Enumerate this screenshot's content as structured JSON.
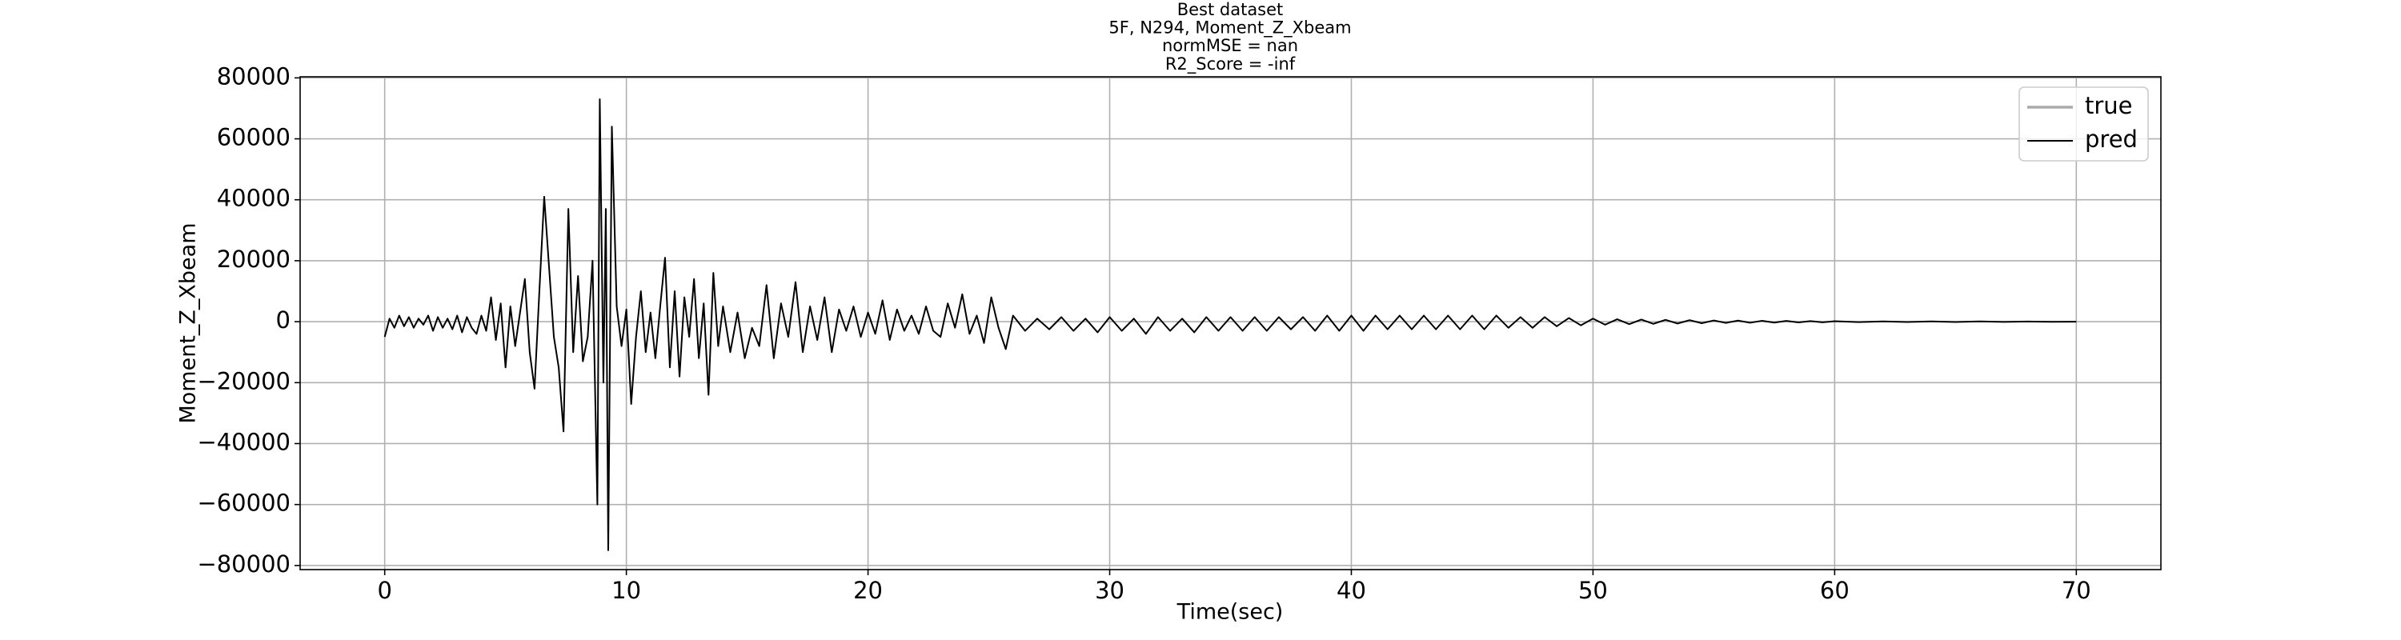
{
  "chart_data": {
    "type": "line",
    "title": [
      "Best dataset",
      "5F, N294, Moment_Z_Xbeam",
      "normMSE = nan",
      "R2_Score = -inf"
    ],
    "xlabel": "Time(sec)",
    "ylabel": "Moment_Z_Xbeam",
    "xlim": [
      -3.5,
      73.5
    ],
    "ylim": [
      -81350,
      80350
    ],
    "xticks": [
      0,
      10,
      20,
      30,
      40,
      50,
      60,
      70
    ],
    "yticks": [
      {
        "value": -80000,
        "label": "−80000"
      },
      {
        "value": -60000,
        "label": "−60000"
      },
      {
        "value": -40000,
        "label": "−40000"
      },
      {
        "value": -20000,
        "label": "−20000"
      },
      0,
      20000,
      40000,
      60000,
      80000
    ],
    "grid": true,
    "legend": "upper right",
    "x": [
      0,
      0.2,
      0.4,
      0.6,
      0.8,
      1.0,
      1.2,
      1.4,
      1.6,
      1.8,
      2.0,
      2.2,
      2.4,
      2.6,
      2.8,
      3.0,
      3.2,
      3.4,
      3.6,
      3.8,
      4.0,
      4.2,
      4.4,
      4.6,
      4.8,
      5.0,
      5.2,
      5.4,
      5.6,
      5.8,
      6.0,
      6.2,
      6.4,
      6.6,
      6.8,
      7.0,
      7.2,
      7.4,
      7.6,
      7.8,
      8.0,
      8.2,
      8.4,
      8.6,
      8.8,
      8.9,
      9.05,
      9.15,
      9.25,
      9.4,
      9.6,
      9.8,
      10.0,
      10.2,
      10.4,
      10.6,
      10.8,
      11.0,
      11.2,
      11.4,
      11.6,
      11.8,
      12.0,
      12.2,
      12.4,
      12.6,
      12.8,
      13.0,
      13.2,
      13.4,
      13.6,
      13.8,
      14.0,
      14.3,
      14.6,
      14.9,
      15.2,
      15.5,
      15.8,
      16.1,
      16.4,
      16.7,
      17.0,
      17.3,
      17.6,
      17.9,
      18.2,
      18.5,
      18.8,
      19.1,
      19.4,
      19.7,
      20.0,
      20.3,
      20.6,
      20.9,
      21.2,
      21.5,
      21.8,
      22.1,
      22.4,
      22.7,
      23.0,
      23.3,
      23.6,
      23.9,
      24.2,
      24.5,
      24.8,
      25.1,
      25.4,
      25.7,
      26.0,
      26.5,
      27,
      27.5,
      28,
      28.5,
      29,
      29.5,
      30,
      30.5,
      31,
      31.5,
      32,
      32.5,
      33,
      33.5,
      34,
      34.5,
      35,
      35.5,
      36,
      36.5,
      37,
      37.5,
      38,
      38.5,
      39,
      39.5,
      40,
      40.5,
      41,
      41.5,
      42,
      42.5,
      43,
      43.5,
      44,
      44.5,
      45,
      45.5,
      46,
      46.5,
      47,
      47.5,
      48,
      48.5,
      49,
      49.5,
      50,
      50.5,
      51,
      51.5,
      52,
      52.5,
      53,
      53.5,
      54,
      54.5,
      55,
      55.5,
      56,
      56.5,
      57,
      57.5,
      58,
      58.5,
      59,
      59.5,
      60,
      61,
      62,
      63,
      64,
      65,
      66,
      67,
      68,
      69,
      70
    ],
    "series": [
      {
        "name": "true",
        "color": "#aaaaaa",
        "width": 3.5,
        "values": [
          null,
          null,
          null,
          null,
          null,
          null,
          null,
          null,
          null,
          null,
          null,
          null,
          null,
          null,
          null,
          null,
          null,
          null,
          null,
          null,
          null,
          null,
          null,
          null,
          null,
          null,
          null,
          null,
          null,
          null,
          null,
          null,
          null,
          null,
          null,
          null,
          null,
          null,
          null,
          null,
          null,
          null,
          null,
          null,
          null,
          null,
          null,
          null,
          null,
          null,
          null,
          null,
          null,
          null,
          null,
          null,
          null,
          null,
          null,
          null,
          null,
          null,
          null,
          null,
          null,
          null,
          null,
          null,
          null,
          null,
          null,
          null,
          null,
          null,
          null,
          null,
          null,
          null,
          null,
          null,
          null,
          null,
          null,
          null,
          null,
          null,
          null,
          null,
          null,
          null,
          null,
          null,
          null,
          null,
          null,
          null,
          null,
          null,
          null,
          null,
          null,
          null,
          null,
          null,
          null,
          null,
          null,
          null,
          null,
          null,
          null,
          null,
          null,
          null,
          null,
          null,
          null,
          null,
          null,
          null,
          null,
          null,
          null,
          null,
          null,
          null,
          null,
          null,
          null,
          null,
          null,
          null,
          null,
          null,
          null,
          null,
          null,
          null,
          null,
          null,
          null,
          null,
          null,
          null,
          null,
          null,
          null,
          null,
          null,
          null,
          null,
          null,
          null,
          null,
          null,
          null,
          null,
          null,
          null,
          null,
          null,
          null,
          null,
          null,
          null,
          null,
          null,
          null,
          null,
          null,
          null,
          null,
          null,
          null,
          null,
          null,
          null,
          null,
          null,
          null,
          null,
          null,
          null,
          null,
          null,
          null,
          null,
          null,
          null,
          null,
          null
        ]
      },
      {
        "name": "pred",
        "color": "#000000",
        "width": 2,
        "values": [
          -5000,
          1000,
          -2000,
          2000,
          -1500,
          1500,
          -2000,
          1000,
          -1000,
          2000,
          -3000,
          1500,
          -2000,
          1000,
          -2500,
          2000,
          -3500,
          1500,
          -2000,
          -4000,
          2000,
          -3000,
          8000,
          -6000,
          6000,
          -15000,
          5000,
          -8000,
          3000,
          14000,
          -10000,
          -22000,
          10000,
          41000,
          18000,
          -5000,
          -15000,
          -36000,
          37000,
          -10000,
          15000,
          -13000,
          -5000,
          20000,
          -60000,
          73000,
          -20000,
          37000,
          -75000,
          64000,
          5000,
          -8000,
          4000,
          -27000,
          -5000,
          10000,
          -10000,
          3000,
          -12000,
          5000,
          21000,
          -15000,
          10000,
          -18000,
          8000,
          -5000,
          14000,
          -12000,
          6000,
          -24000,
          16000,
          -8000,
          5000,
          -10000,
          3000,
          -12000,
          -2000,
          -8000,
          12000,
          -12000,
          6000,
          -5000,
          13000,
          -10000,
          5000,
          -6000,
          8000,
          -10000,
          4000,
          -3000,
          5000,
          -5000,
          3000,
          -4000,
          7000,
          -6000,
          4000,
          -3000,
          2000,
          -4000,
          5000,
          -3000,
          -5000,
          6000,
          -2000,
          9000,
          -4000,
          2000,
          -7000,
          8000,
          -2000,
          -9000,
          2000,
          -3000,
          1000,
          -2500,
          1500,
          -3000,
          1000,
          -3500,
          1500,
          -3000,
          1000,
          -4000,
          1500,
          -3000,
          1000,
          -3500,
          1500,
          -3000,
          1500,
          -3000,
          1500,
          -3000,
          1500,
          -2500,
          1500,
          -3000,
          2000,
          -3000,
          2000,
          -3000,
          2000,
          -2500,
          2000,
          -2500,
          2000,
          -2500,
          2000,
          -2500,
          2000,
          -2500,
          2000,
          -2000,
          1500,
          -2000,
          1500,
          -1500,
          1200,
          -1200,
          1000,
          -1000,
          800,
          -800,
          700,
          -700,
          600,
          -600,
          500,
          -500,
          400,
          -400,
          350,
          -350,
          300,
          -300,
          250,
          -250,
          200,
          -200,
          150,
          -150,
          100,
          -100,
          100,
          -100,
          80,
          -80,
          50,
          -50,
          0
        ]
      }
    ]
  }
}
